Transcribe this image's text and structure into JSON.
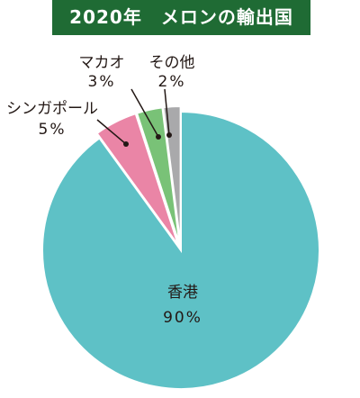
{
  "chart_data": {
    "type": "pie",
    "title": "2020年　メロンの輸出国",
    "slices": [
      {
        "label": "香港",
        "value_label": "90%",
        "value": 90,
        "color": "#5ec1c6"
      },
      {
        "label": "シンガポール",
        "value_label": "5%",
        "value": 5,
        "color": "#ea85a6"
      },
      {
        "label": "マカオ",
        "value_label": "3%",
        "value": 3,
        "color": "#79c277"
      },
      {
        "label": "その他",
        "value_label": "2%",
        "value": 2,
        "color": "#a9a9ab"
      }
    ]
  }
}
